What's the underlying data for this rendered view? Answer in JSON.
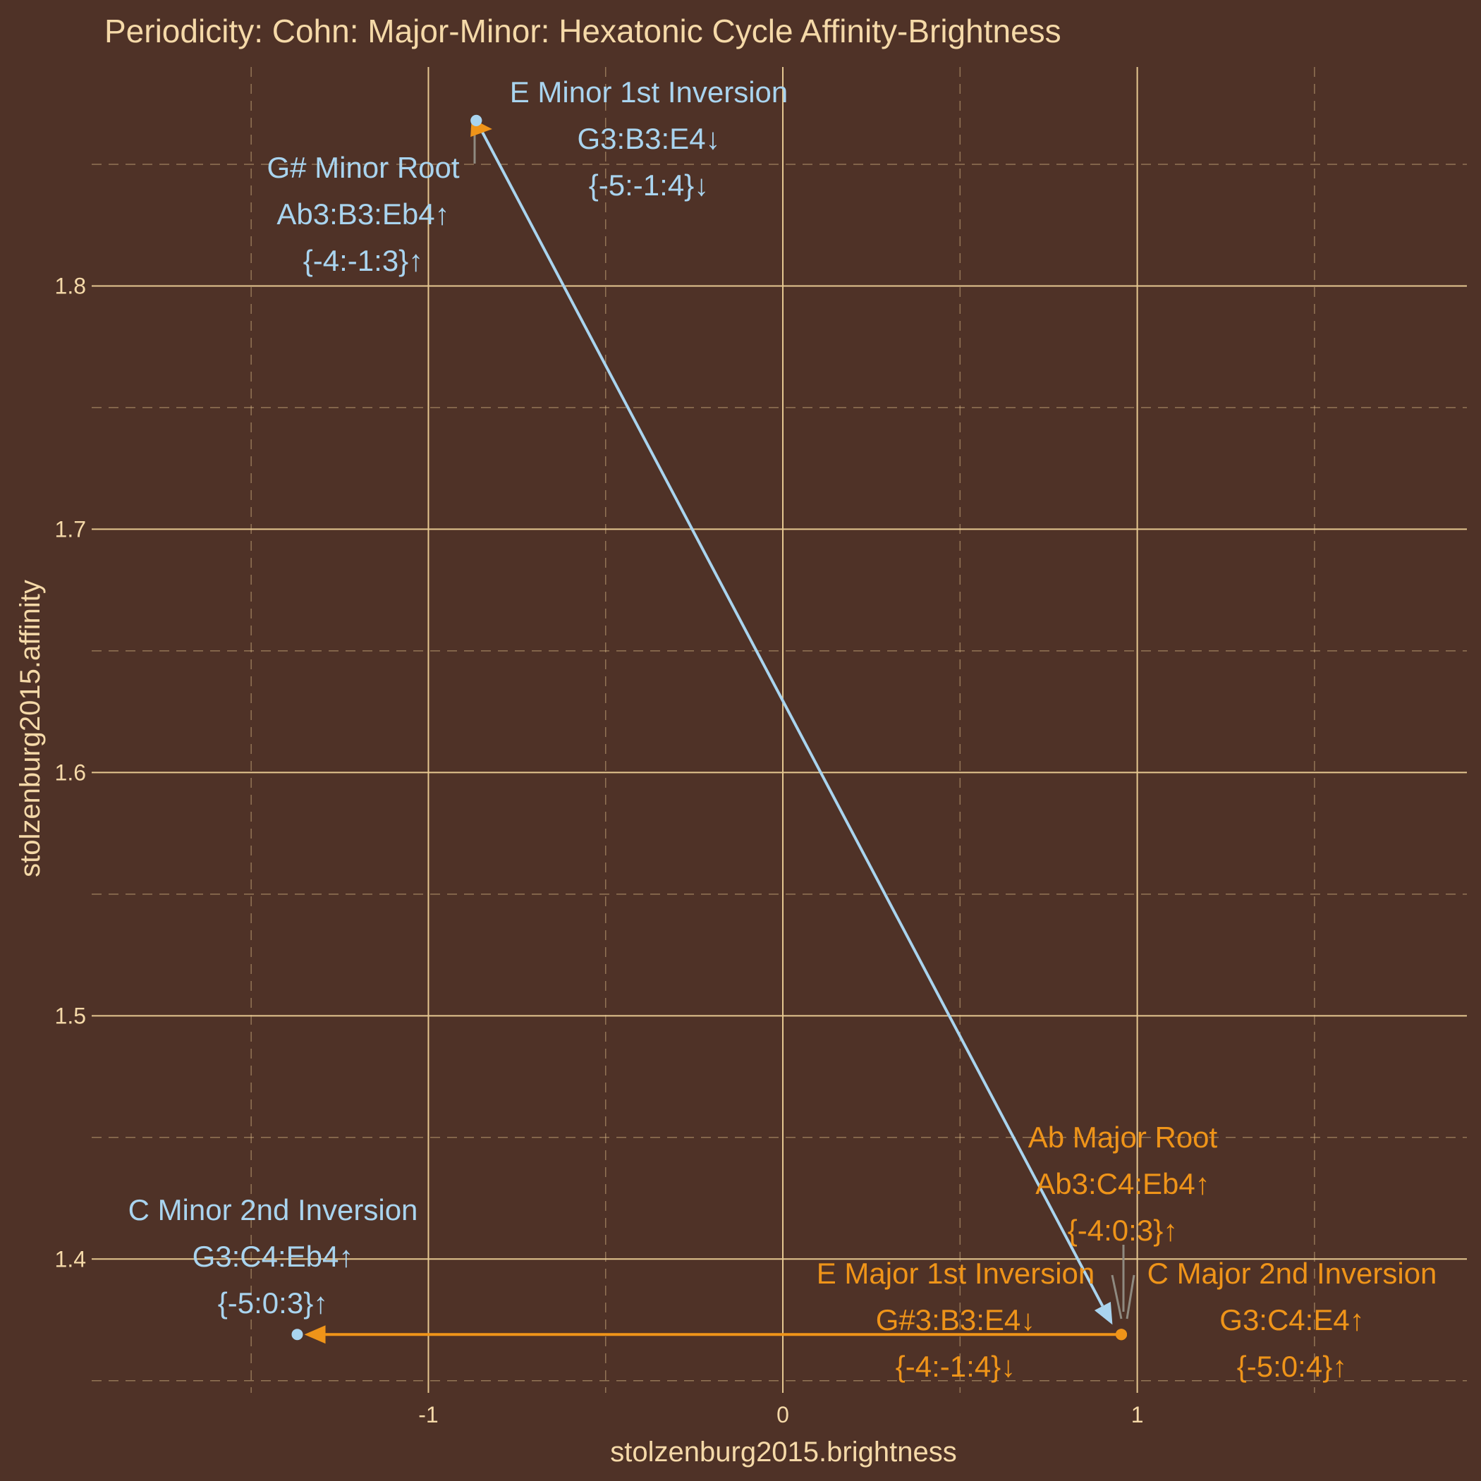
{
  "chart_data": {
    "type": "scatter",
    "title": "Periodicity: Cohn: Major-Minor: Hexatonic Cycle Affinity-Brightness",
    "xlabel": "stolzenburg2015.brightness",
    "ylabel": "stolzenburg2015.affinity",
    "xlim": [
      -1.95,
      1.93
    ],
    "ylim": [
      1.345,
      1.89
    ],
    "x_ticks": [
      -1,
      0,
      1
    ],
    "x_tick_labels": [
      "-1",
      "0",
      "1"
    ],
    "y_ticks": [
      1.4,
      1.5,
      1.6,
      1.7,
      1.8
    ],
    "y_tick_labels": [
      "1.4",
      "1.5",
      "1.6",
      "1.7",
      "1.8"
    ],
    "grid": true,
    "colors": {
      "background": "#4f3227",
      "text": "#f5d9a8",
      "grid": "#e6c891",
      "minor": "#a9d4ef",
      "major": "#ef9419",
      "connector": "#8f8a80"
    },
    "series": [
      {
        "name": "",
        "color": "#a9d4ef",
        "points": [
          {
            "x": -0.865,
            "y": 1.868,
            "name": "E Minor 1st Inversion",
            "notes": "G3:B3:E4↓",
            "intervals": "{-5:-1:4}↓"
          },
          {
            "x": -0.865,
            "y": 1.868,
            "name": "G# Minor Root",
            "notes": "Ab3:B3:Eb4↑",
            "intervals": "{-4:-1:3}↑"
          },
          {
            "x": -1.37,
            "y": 1.369,
            "name": "C Minor 2nd Inversion",
            "notes": "G3:C4:Eb4↑",
            "intervals": "{-5:0:3}↑"
          }
        ]
      },
      {
        "name": "",
        "color": "#ef9419",
        "points": [
          {
            "x": 0.955,
            "y": 1.369,
            "name": "Ab Major Root",
            "notes": "Ab3:C4:Eb4↑",
            "intervals": "{-4:0:3}↑"
          },
          {
            "x": 0.955,
            "y": 1.369,
            "name": "E Major 1st Inversion",
            "notes": "G#3:B3:E4↓",
            "intervals": "{-4:-1:4}↓"
          },
          {
            "x": 0.955,
            "y": 1.369,
            "name": "C Major 2nd Inversion",
            "notes": "G3:C4:E4↑",
            "intervals": "{-5:0:4}↑"
          }
        ]
      }
    ],
    "arrows": [
      {
        "from": [
          -0.865,
          1.868
        ],
        "to": [
          0.93,
          1.373
        ],
        "color": "#a9d4ef"
      },
      {
        "from": [
          0.955,
          1.369
        ],
        "to": [
          -1.35,
          1.369
        ],
        "color": "#ef9419"
      },
      {
        "from": [
          -0.875,
          1.865
        ],
        "to": [
          -0.82,
          1.8645
        ],
        "color": "#ef9419"
      }
    ]
  }
}
